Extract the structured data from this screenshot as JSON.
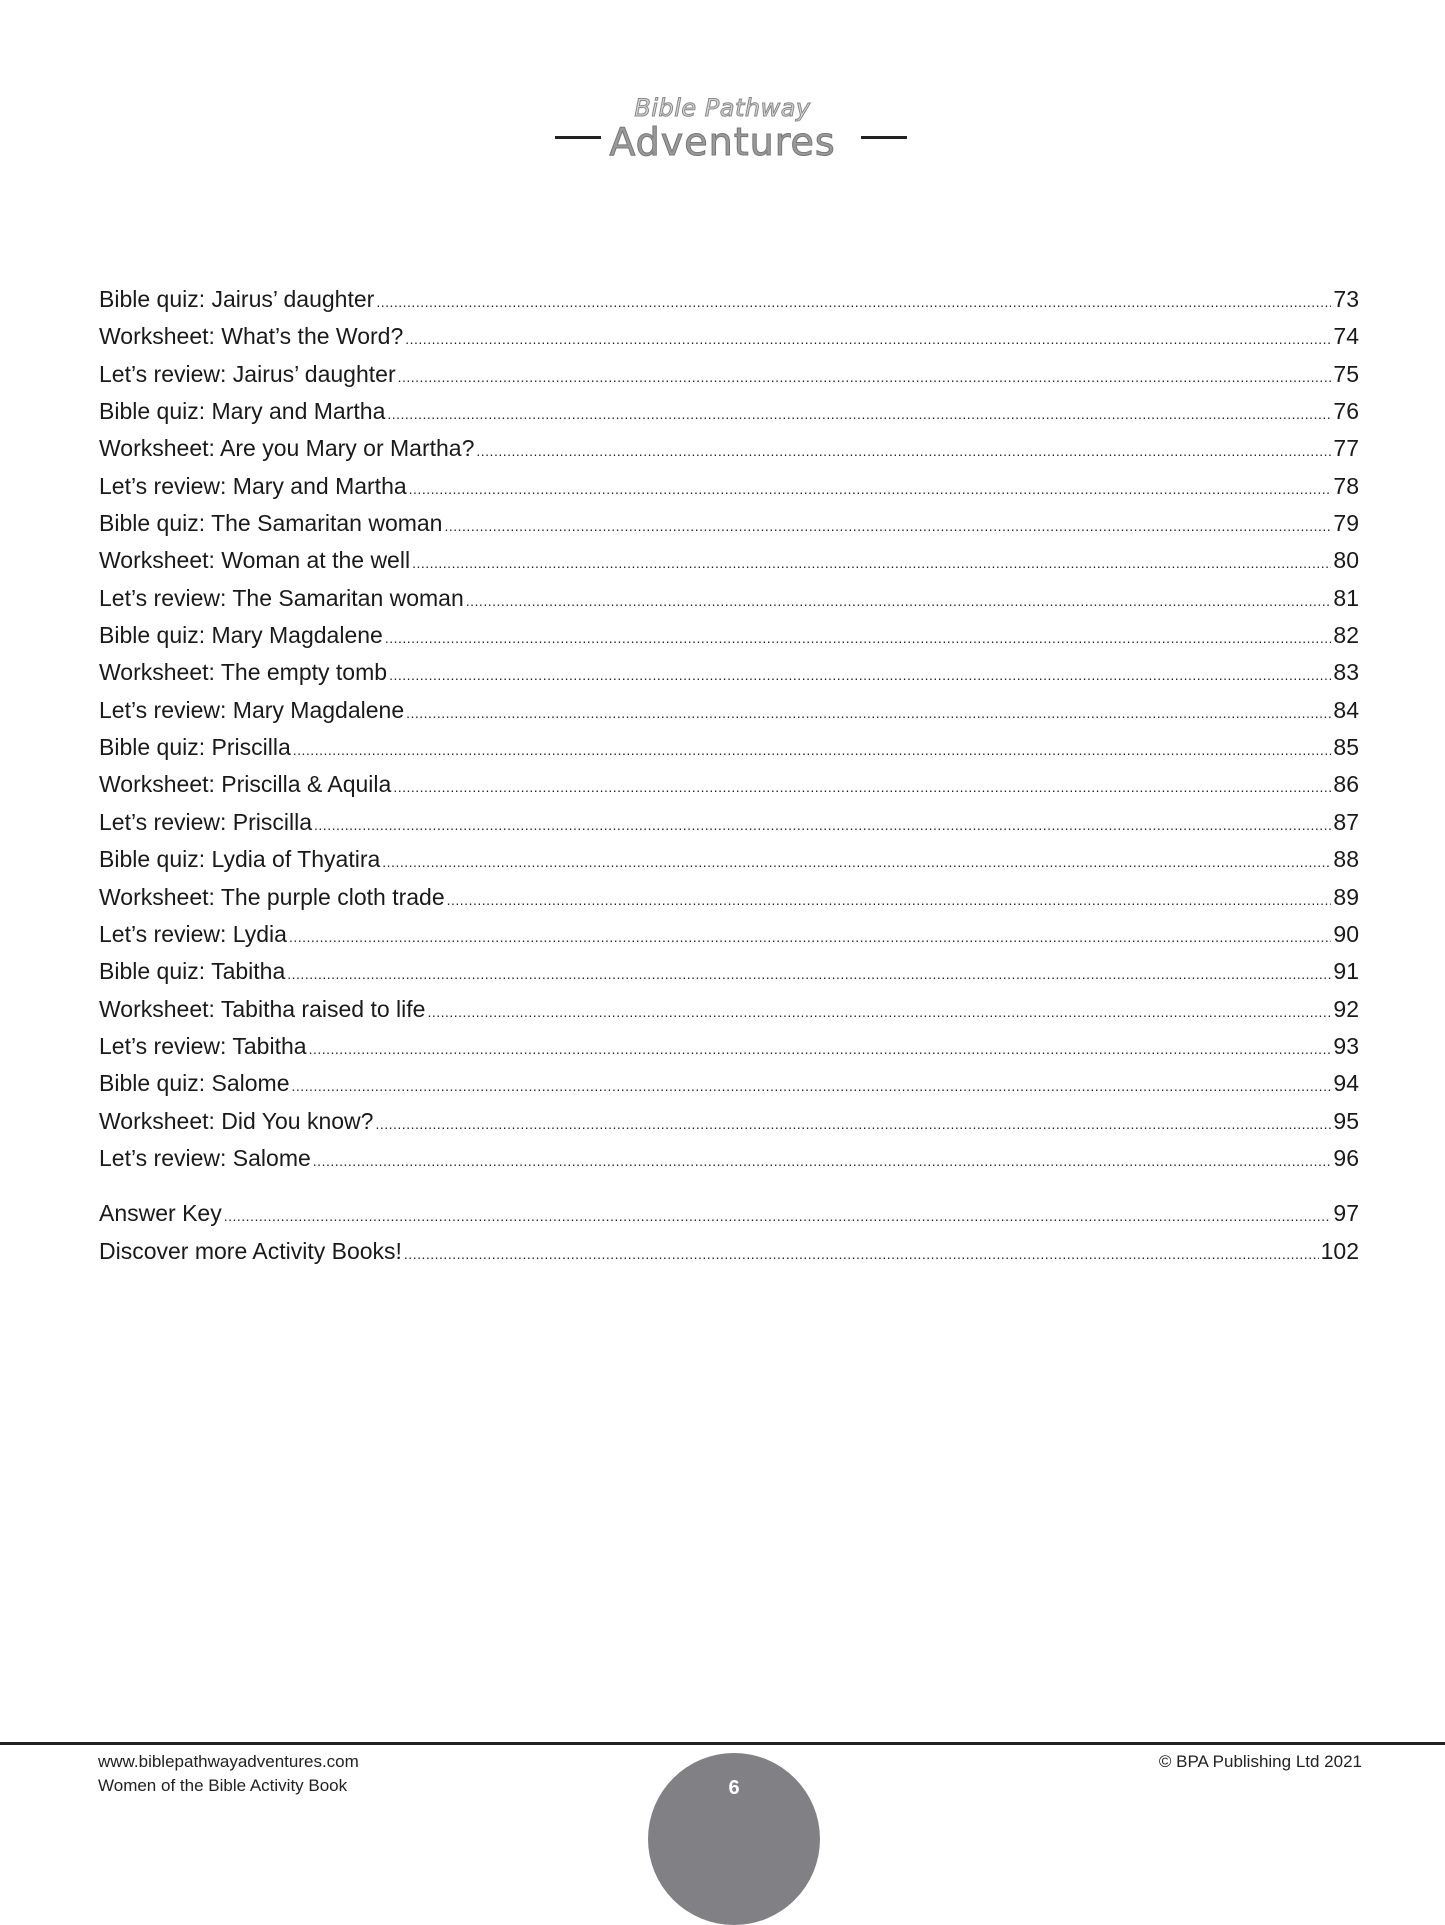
{
  "header": {
    "logo_line1": "Bible Pathway",
    "logo_line2": "Adventures"
  },
  "toc": {
    "entries": [
      {
        "title": "Bible quiz: Jairus’ daughter",
        "page": "73"
      },
      {
        "title": "Worksheet: What’s the Word?",
        "page": "74"
      },
      {
        "title": "Let’s review: Jairus’ daughter",
        "page": "75"
      },
      {
        "title": "Bible quiz: Mary and Martha",
        "page": "76"
      },
      {
        "title": "Worksheet: Are you Mary or Martha?",
        "page": "77"
      },
      {
        "title": "Let’s review: Mary and Martha",
        "page": "78"
      },
      {
        "title": "Bible quiz: The Samaritan woman",
        "page": "79"
      },
      {
        "title": "Worksheet: Woman at the well",
        "page": "80"
      },
      {
        "title": "Let’s review: The Samaritan woman",
        "page": "81"
      },
      {
        "title": "Bible quiz: Mary Magdalene",
        "page": "82"
      },
      {
        "title": "Worksheet: The empty tomb",
        "page": "83"
      },
      {
        "title": "Let’s review: Mary Magdalene",
        "page": "84"
      },
      {
        "title": "Bible quiz: Priscilla",
        "page": "85"
      },
      {
        "title": "Worksheet: Priscilla & Aquila",
        "page": "86"
      },
      {
        "title": "Let’s review: Priscilla",
        "page": "87"
      },
      {
        "title": "Bible quiz: Lydia of Thyatira",
        "page": "88"
      },
      {
        "title": "Worksheet: The purple cloth trade",
        "page": "89"
      },
      {
        "title": "Let’s review: Lydia",
        "page": "90"
      },
      {
        "title": "Bible quiz: Tabitha",
        "page": "91"
      },
      {
        "title": "Worksheet: Tabitha raised to life",
        "page": "92"
      },
      {
        "title": "Let’s review: Tabitha",
        "page": "93"
      },
      {
        "title": "Bible quiz: Salome",
        "page": "94"
      },
      {
        "title": "Worksheet: Did You know?",
        "page": "95"
      },
      {
        "title": "Let’s review: Salome",
        "page": "96"
      }
    ],
    "extra": [
      {
        "title": "Answer Key",
        "page": "97"
      },
      {
        "title": "Discover more Activity Books!",
        "page": "102"
      }
    ]
  },
  "footer": {
    "website": "www.biblepathwayadventures.com",
    "book_title": "Women of the Bible Activity Book",
    "copyright": "© BPA Publishing Ltd 2021",
    "page_number": "6"
  }
}
